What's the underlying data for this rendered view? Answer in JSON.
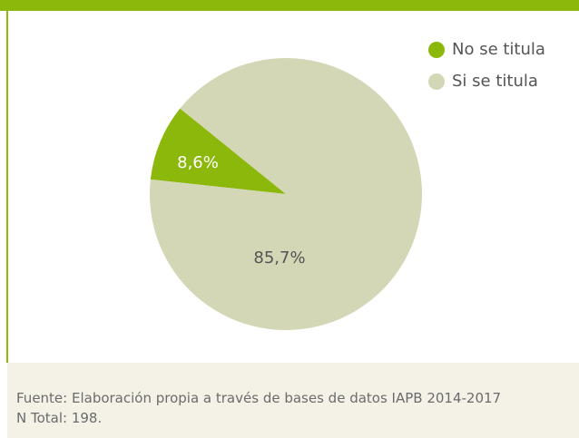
{
  "chart_data": {
    "type": "pie",
    "categories": [
      "No se titula",
      "Si se titula"
    ],
    "values": [
      8.6,
      85.7
    ],
    "value_labels": [
      "8,6%",
      "85,7%"
    ],
    "colors": [
      "#8cb80c",
      "#d4d7b6"
    ],
    "legend": "top-right",
    "source": "Fuente: Elaboración propia a través de bases de datos IAPB 2014-2017",
    "note": "N Total: 198."
  }
}
